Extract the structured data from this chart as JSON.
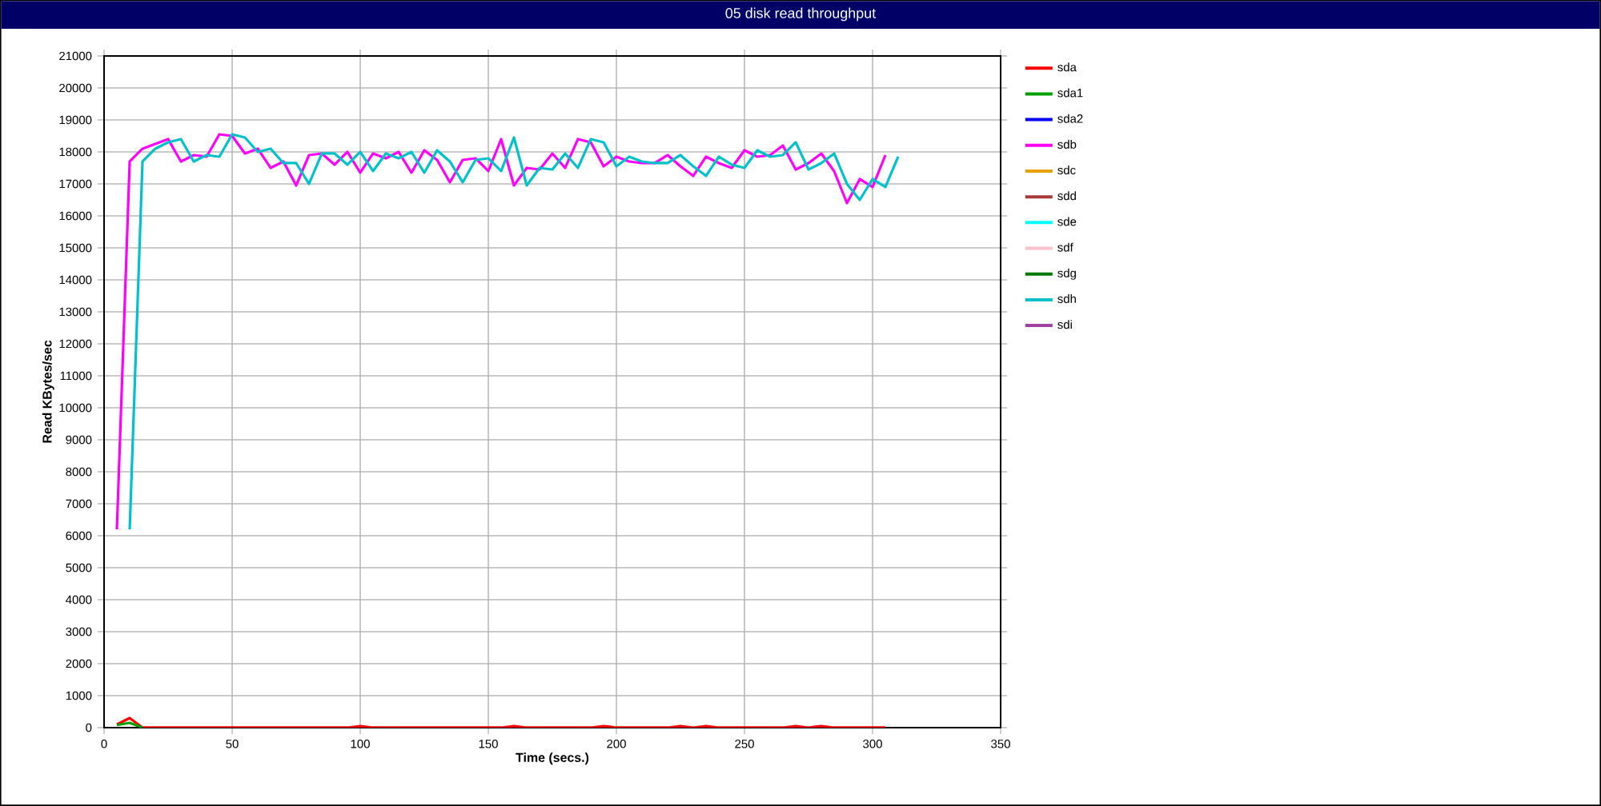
{
  "chart_data": {
    "type": "line",
    "title": "05 disk read throughput",
    "xlabel": "Time (secs.)",
    "ylabel": "Read KBytes/sec",
    "x": [
      5,
      10,
      15,
      20,
      25,
      30,
      35,
      40,
      45,
      50,
      55,
      60,
      65,
      70,
      75,
      80,
      85,
      90,
      95,
      100,
      105,
      110,
      115,
      120,
      125,
      130,
      135,
      140,
      145,
      150,
      155,
      160,
      165,
      170,
      175,
      180,
      185,
      190,
      195,
      200,
      205,
      210,
      215,
      220,
      225,
      230,
      235,
      240,
      245,
      250,
      255,
      260,
      265,
      270,
      275,
      280,
      285,
      290,
      295,
      300,
      305
    ],
    "xlim": [
      0,
      350
    ],
    "xticks": [
      0,
      50,
      100,
      150,
      200,
      250,
      300,
      350
    ],
    "ylim": [
      0,
      21000
    ],
    "yticks": [
      0,
      1000,
      2000,
      3000,
      4000,
      5000,
      6000,
      7000,
      8000,
      9000,
      10000,
      11000,
      12000,
      13000,
      14000,
      15000,
      16000,
      17000,
      18000,
      19000,
      20000,
      21000
    ],
    "grid": true,
    "legend": "right",
    "marker": "none",
    "line_style": "solid",
    "series": [
      {
        "name": "sda",
        "color": "#ff0000",
        "values": [
          100,
          300,
          0,
          0,
          0,
          0,
          0,
          0,
          0,
          0,
          0,
          0,
          0,
          0,
          0,
          0,
          0,
          0,
          0,
          50,
          0,
          0,
          0,
          0,
          0,
          0,
          0,
          0,
          0,
          0,
          0,
          50,
          0,
          0,
          0,
          0,
          0,
          0,
          50,
          0,
          0,
          0,
          0,
          0,
          50,
          0,
          50,
          0,
          0,
          0,
          0,
          0,
          0,
          50,
          0,
          50,
          0,
          0,
          0,
          0,
          0
        ]
      },
      {
        "name": "sda1",
        "color": "#00a000",
        "x": [
          5,
          10,
          15
        ],
        "values": [
          80,
          150,
          0
        ]
      },
      {
        "name": "sda2",
        "color": "#0000ff",
        "values": [
          null,
          null,
          null,
          null,
          null,
          null,
          null,
          null,
          null,
          null,
          null,
          null,
          null,
          null,
          null,
          null,
          null,
          null,
          null,
          null,
          null,
          null,
          null,
          null,
          null,
          null,
          null,
          null,
          null,
          null,
          null,
          null,
          null,
          null,
          null,
          null,
          null,
          null,
          null,
          null,
          null,
          null,
          null,
          null,
          null,
          null,
          null,
          null,
          null,
          null,
          null,
          null,
          null,
          null,
          null,
          null,
          null,
          null,
          null,
          null,
          null
        ]
      },
      {
        "name": "sdb",
        "color": "#ff00ff",
        "values": [
          6200,
          17700,
          18100,
          18250,
          18400,
          17700,
          17900,
          17850,
          18550,
          18500,
          17950,
          18100,
          17500,
          17700,
          16950,
          17900,
          17950,
          17600,
          18000,
          17350,
          17950,
          17800,
          18000,
          17350,
          18050,
          17750,
          17050,
          17750,
          17800,
          17400,
          18400,
          16950,
          17500,
          17450,
          17950,
          17500,
          18400,
          18300,
          17550,
          17850,
          17700,
          17650,
          17650,
          17900,
          17550,
          17250,
          17850,
          17650,
          17500,
          18050,
          17850,
          17900,
          18200,
          17450,
          17650,
          17950,
          17400,
          16400,
          17150,
          16900,
          17900
        ]
      },
      {
        "name": "sdc",
        "color": "#e8a000",
        "values": [
          null,
          null,
          null,
          null,
          null,
          null,
          null,
          null,
          null,
          null,
          null,
          null,
          null,
          null,
          null,
          null,
          null,
          null,
          null,
          null,
          null,
          null,
          null,
          null,
          null,
          null,
          null,
          null,
          null,
          null,
          null,
          null,
          null,
          null,
          null,
          null,
          null,
          null,
          null,
          null,
          null,
          null,
          null,
          null,
          null,
          null,
          null,
          null,
          null,
          null,
          null,
          null,
          null,
          null,
          null,
          null,
          null,
          null,
          null,
          null,
          null
        ]
      },
      {
        "name": "sdd",
        "color": "#a83838",
        "values": [
          null,
          null,
          null,
          null,
          null,
          null,
          null,
          null,
          null,
          null,
          null,
          null,
          null,
          null,
          null,
          null,
          null,
          null,
          null,
          null,
          null,
          null,
          null,
          null,
          null,
          null,
          null,
          null,
          null,
          null,
          null,
          null,
          null,
          null,
          null,
          null,
          null,
          null,
          null,
          null,
          null,
          null,
          null,
          null,
          null,
          null,
          null,
          null,
          null,
          null,
          null,
          null,
          null,
          null,
          null,
          null,
          null,
          null,
          null,
          null,
          null
        ]
      },
      {
        "name": "sde",
        "color": "#00ffff",
        "values": [
          null,
          null,
          null,
          null,
          null,
          null,
          null,
          null,
          null,
          null,
          null,
          null,
          null,
          null,
          null,
          null,
          null,
          null,
          null,
          null,
          null,
          null,
          null,
          null,
          null,
          null,
          null,
          null,
          null,
          null,
          null,
          null,
          null,
          null,
          null,
          null,
          null,
          null,
          null,
          null,
          null,
          null,
          null,
          null,
          null,
          null,
          null,
          null,
          null,
          null,
          null,
          null,
          null,
          null,
          null,
          null,
          null,
          null,
          null,
          null,
          null
        ]
      },
      {
        "name": "sdf",
        "color": "#ffc0cb",
        "values": [
          null,
          null,
          null,
          null,
          null,
          null,
          null,
          null,
          null,
          null,
          null,
          null,
          null,
          null,
          null,
          null,
          null,
          null,
          null,
          null,
          null,
          null,
          null,
          null,
          null,
          null,
          null,
          null,
          null,
          null,
          null,
          null,
          null,
          null,
          null,
          null,
          null,
          null,
          null,
          null,
          null,
          null,
          null,
          null,
          null,
          null,
          null,
          null,
          null,
          null,
          null,
          null,
          null,
          null,
          null,
          null,
          null,
          null,
          null,
          null,
          null
        ]
      },
      {
        "name": "sdg",
        "color": "#007800",
        "values": [
          null,
          null,
          null,
          null,
          null,
          null,
          null,
          null,
          null,
          null,
          null,
          null,
          null,
          null,
          null,
          null,
          null,
          null,
          null,
          null,
          null,
          null,
          null,
          null,
          null,
          null,
          null,
          null,
          null,
          null,
          null,
          null,
          null,
          null,
          null,
          null,
          null,
          null,
          null,
          null,
          null,
          null,
          null,
          null,
          null,
          null,
          null,
          null,
          null,
          null,
          null,
          null,
          null,
          null,
          null,
          null,
          null,
          null,
          null,
          null,
          null
        ]
      },
      {
        "name": "sdh",
        "color": "#00c0c8",
        "x": [
          10,
          15,
          20,
          25,
          30,
          35,
          40,
          45,
          50,
          55,
          60,
          65,
          70,
          75,
          80,
          85,
          90,
          95,
          100,
          105,
          110,
          115,
          120,
          125,
          130,
          135,
          140,
          145,
          150,
          155,
          160,
          165,
          170,
          175,
          180,
          185,
          190,
          195,
          200,
          205,
          210,
          215,
          220,
          225,
          230,
          235,
          240,
          245,
          250,
          255,
          260,
          265,
          270,
          275,
          280,
          285,
          290,
          295,
          300,
          305,
          310
        ],
        "values": [
          6200,
          17700,
          18100,
          18300,
          18400,
          17700,
          17900,
          17850,
          18550,
          18450,
          18000,
          18100,
          17650,
          17650,
          17000,
          17950,
          17950,
          17600,
          18000,
          17400,
          17950,
          17800,
          18000,
          17350,
          18050,
          17700,
          17050,
          17750,
          17800,
          17400,
          18450,
          16950,
          17500,
          17450,
          17950,
          17500,
          18400,
          18300,
          17550,
          17850,
          17700,
          17650,
          17650,
          17900,
          17550,
          17250,
          17850,
          17600,
          17500,
          18050,
          17850,
          17900,
          18300,
          17450,
          17650,
          17950,
          17000,
          16500,
          17150,
          16900,
          17850
        ]
      },
      {
        "name": "sdi",
        "color": "#a040a0",
        "values": [
          null,
          null,
          null,
          null,
          null,
          null,
          null,
          null,
          null,
          null,
          null,
          null,
          null,
          null,
          null,
          null,
          null,
          null,
          null,
          null,
          null,
          null,
          null,
          null,
          null,
          null,
          null,
          null,
          null,
          null,
          null,
          null,
          null,
          null,
          null,
          null,
          null,
          null,
          null,
          null,
          null,
          null,
          null,
          null,
          null,
          null,
          null,
          null,
          null,
          null,
          null,
          null,
          null,
          null,
          null,
          null,
          null,
          null,
          null,
          null,
          null
        ]
      }
    ]
  }
}
